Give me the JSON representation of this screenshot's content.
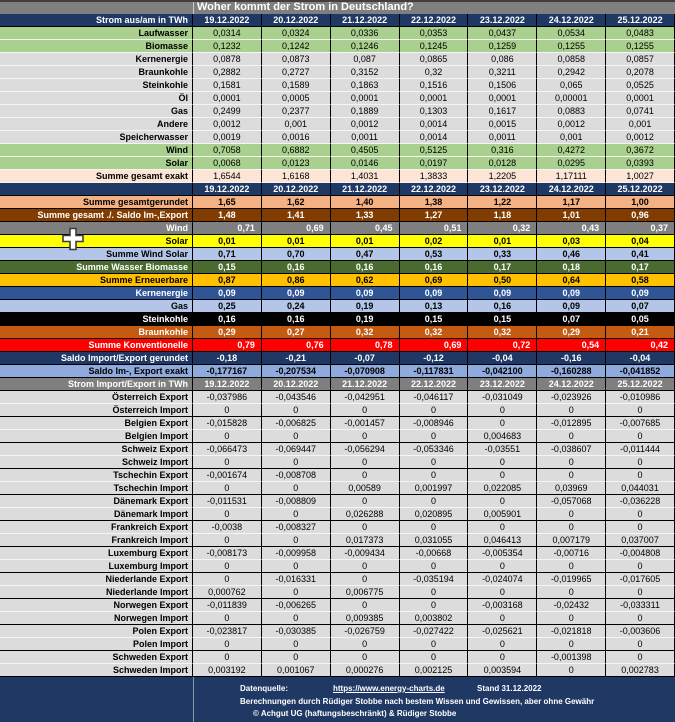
{
  "title": "Woher kommt der Strom in Deutschland?",
  "dates": [
    "19.12.2022",
    "20.12.2022",
    "21.12.2022",
    "22.12.2022",
    "23.12.2022",
    "24.12.2022",
    "25.12.2022"
  ],
  "colors": {
    "header_navy": "#1F3864",
    "title_gray": "#7F7F7F",
    "row_green": "#A9D08E",
    "row_gray": "#DCDCDC",
    "row_peach": "#FCE4D6"
  },
  "generation": {
    "header_label": "Strom aus/am in TWh",
    "rows": [
      {
        "label": "Laufwasser",
        "style": "green",
        "values": [
          "0,0314",
          "0,0324",
          "0,0336",
          "0,0353",
          "0,0437",
          "0,0534",
          "0,0483"
        ]
      },
      {
        "label": "Biomasse",
        "style": "green",
        "values": [
          "0,1232",
          "0,1242",
          "0,1246",
          "0,1245",
          "0,1259",
          "0,1255",
          "0,1255"
        ]
      },
      {
        "label": "Kernenergie",
        "style": "gray",
        "values": [
          "0,0878",
          "0,0873",
          "0,087",
          "0,0865",
          "0,086",
          "0,0858",
          "0,0857"
        ]
      },
      {
        "label": "Braunkohle",
        "style": "gray",
        "values": [
          "0,2882",
          "0,2727",
          "0,3152",
          "0,32",
          "0,3211",
          "0,2942",
          "0,2078"
        ]
      },
      {
        "label": "Steinkohle",
        "style": "gray",
        "values": [
          "0,1581",
          "0,1589",
          "0,1863",
          "0,1516",
          "0,1506",
          "0,065",
          "0,0525"
        ]
      },
      {
        "label": "Öl",
        "style": "gray",
        "values": [
          "0,0001",
          "0,0005",
          "0,0001",
          "0,0001",
          "0,0001",
          "0,00001",
          "0,0001"
        ]
      },
      {
        "label": "Gas",
        "style": "gray",
        "values": [
          "0,2499",
          "0,2377",
          "0,1889",
          "0,1303",
          "0,1617",
          "0,0883",
          "0,0741"
        ]
      },
      {
        "label": "Andere",
        "style": "gray",
        "values": [
          "0,0012",
          "0,001",
          "0,0012",
          "0,0014",
          "0,0015",
          "0,0012",
          "0,001"
        ]
      },
      {
        "label": "Speicherwasser",
        "style": "gray",
        "values": [
          "0,0019",
          "0,0016",
          "0,0011",
          "0,0014",
          "0,0011",
          "0,001",
          "0,0012"
        ]
      },
      {
        "label": "Wind",
        "style": "green",
        "values": [
          "0,7058",
          "0,6882",
          "0,4505",
          "0,5125",
          "0,316",
          "0,4272",
          "0,3672"
        ]
      },
      {
        "label": "Solar",
        "style": "green",
        "values": [
          "0,0068",
          "0,0123",
          "0,0146",
          "0,0197",
          "0,0128",
          "0,0295",
          "0,0393"
        ]
      },
      {
        "label": "Summe  gesamt exakt",
        "style": "peach",
        "values": [
          "1,6544",
          "1,6168",
          "1,4031",
          "1,3833",
          "1,2205",
          "1,17111",
          "1,0027"
        ]
      }
    ]
  },
  "summary": {
    "rows": [
      {
        "label": "Summe gesamtgerundet",
        "bg": "#F4B183",
        "fg": "#000000",
        "values": [
          "1,65",
          "1,62",
          "1,40",
          "1,38",
          "1,22",
          "1,17",
          "1,00"
        ]
      },
      {
        "label": "Summe gesamt ./. Saldo Im-,Export",
        "bg": "#833C00",
        "fg": "#FFFFFF",
        "values": [
          "1,48",
          "1,41",
          "1,33",
          "1,27",
          "1,18",
          "1,01",
          "0,96"
        ]
      },
      {
        "label": "Wind",
        "bg": "#7F7F7F",
        "fg": "#FFFFFF",
        "align": "right",
        "values": [
          "0,71",
          "0,69",
          "0,45",
          "0,51",
          "0,32",
          "0,43",
          "0,37"
        ]
      },
      {
        "label": "Solar",
        "bg": "#FFFF00",
        "fg": "#000000",
        "values": [
          "0,01",
          "0,01",
          "0,01",
          "0,02",
          "0,01",
          "0,03",
          "0,04"
        ]
      },
      {
        "label": "Summe Wind Solar",
        "bg": "#B4C6E7",
        "fg": "#000000",
        "values": [
          "0,71",
          "0,70",
          "0,47",
          "0,53",
          "0,33",
          "0,46",
          "0,41"
        ]
      },
      {
        "label": "Summe Wasser Biomasse",
        "bg": "#4A6A2F",
        "fg": "#FFFFFF",
        "values": [
          "0,15",
          "0,16",
          "0,16",
          "0,16",
          "0,17",
          "0,18",
          "0,17"
        ]
      },
      {
        "label": "Summe Erneuerbare",
        "bg": "#FFC000",
        "fg": "#000000",
        "values": [
          "0,87",
          "0,86",
          "0,62",
          "0,69",
          "0,50",
          "0,64",
          "0,58"
        ]
      },
      {
        "label": "Kernenergie",
        "bg": "#2F5597",
        "fg": "#FFFFFF",
        "values": [
          "0,09",
          "0,09",
          "0,09",
          "0,09",
          "0,09",
          "0,09",
          "0,09"
        ]
      },
      {
        "label": "Gas",
        "bg": "#B4C6E7",
        "fg": "#000000",
        "values": [
          "0,25",
          "0,24",
          "0,19",
          "0,13",
          "0,16",
          "0,09",
          "0,07"
        ]
      },
      {
        "label": "Steinkohle",
        "bg": "#000000",
        "fg": "#FFFFFF",
        "values": [
          "0,16",
          "0,16",
          "0,19",
          "0,15",
          "0,15",
          "0,07",
          "0,05"
        ]
      },
      {
        "label": "Braunkohle",
        "bg": "#C55A11",
        "fg": "#FFFFFF",
        "values": [
          "0,29",
          "0,27",
          "0,32",
          "0,32",
          "0,32",
          "0,29",
          "0,21"
        ]
      },
      {
        "label": "Summe Konventionelle",
        "bg": "#FF0000",
        "fg": "#FFFFFF",
        "align": "right",
        "values": [
          "0,79",
          "0,76",
          "0,78",
          "0,69",
          "0,72",
          "0,54",
          "0,42"
        ]
      },
      {
        "label": "Saldo Import/Export gerundet",
        "bg": "#1F3864",
        "fg": "#FFFFFF",
        "values": [
          "-0,18",
          "-0,21",
          "-0,07",
          "-0,12",
          "-0,04",
          "-0,16",
          "-0,04"
        ]
      },
      {
        "label": "Saldo Im-, Export exakt",
        "bg": "#8FAADC",
        "fg": "#000000",
        "values": [
          "-0,177167",
          "-0,207534",
          "-0,070908",
          "-0,117831",
          "-0,042100",
          "-0,160288",
          "-0,041852"
        ]
      }
    ]
  },
  "importexport": {
    "header_label": "Strom Import/Export in TWh",
    "rows": [
      {
        "label": "Österreich Export",
        "values": [
          "-0,037986",
          "-0,043546",
          "-0,042951",
          "-0,046117",
          "-0,031049",
          "-0,023926",
          "-0,010986"
        ]
      },
      {
        "label": "Österreich Import",
        "values": [
          "0",
          "0",
          "0",
          "0",
          "0",
          "0",
          "0"
        ]
      },
      {
        "label": "Belgien  Export",
        "values": [
          "-0,015828",
          "-0,006825",
          "-0,001457",
          "-0,008946",
          "0",
          "-0,012895",
          "-0,007685"
        ]
      },
      {
        "label": "Belgien Import",
        "values": [
          "0",
          "0",
          "0",
          "0",
          "0,004683",
          "0",
          "0"
        ]
      },
      {
        "label": "Schweiz Export",
        "values": [
          "-0,066473",
          "-0,069447",
          "-0,056294",
          "-0,053346",
          "-0,03551",
          "-0,038607",
          "-0,011444"
        ]
      },
      {
        "label": "Schweiz Import",
        "values": [
          "0",
          "0",
          "0",
          "0",
          "0",
          "0",
          "0"
        ]
      },
      {
        "label": "Tschechin Export",
        "values": [
          "-0,001674",
          "-0,008708",
          "0",
          "0",
          "0",
          "0",
          "0"
        ]
      },
      {
        "label": "Tschechin Import",
        "values": [
          "0",
          "0",
          "0,00589",
          "0,001997",
          "0,022085",
          "0,03969",
          "0,044031"
        ]
      },
      {
        "label": "Dänemark Export",
        "values": [
          "-0,011531",
          "-0,008809",
          "0",
          "0",
          "0",
          "-0,057068",
          "-0,036228"
        ]
      },
      {
        "label": "Dänemark Import",
        "values": [
          "0",
          "0",
          "0,026288",
          "0,020895",
          "0,005901",
          "0",
          "0"
        ]
      },
      {
        "label": "Frankreich Export",
        "values": [
          "-0,0038",
          "-0,008327",
          "0",
          "0",
          "0",
          "0",
          "0"
        ]
      },
      {
        "label": "Frankreich Import",
        "values": [
          "0",
          "0",
          "0,017373",
          "0,031055",
          "0,046413",
          "0,007179",
          "0,037007"
        ]
      },
      {
        "label": "Luxemburg Export",
        "values": [
          "-0,008173",
          "-0,009958",
          "-0,009434",
          "-0,00668",
          "-0,005354",
          "-0,00716",
          "-0,004808"
        ]
      },
      {
        "label": "Luxemburg Import",
        "values": [
          "0",
          "0",
          "0",
          "0",
          "0",
          "0",
          "0"
        ]
      },
      {
        "label": "Niederlande Export",
        "values": [
          "0",
          "-0,016331",
          "0",
          "-0,035194",
          "-0,024074",
          "-0,019965",
          "-0,017605"
        ]
      },
      {
        "label": "Niederlande Import",
        "values": [
          "0,000762",
          "0",
          "0,006775",
          "0",
          "0",
          "0",
          "0"
        ]
      },
      {
        "label": "Norwegen Export",
        "values": [
          "-0,011839",
          "-0,006265",
          "0",
          "0",
          "-0,003168",
          "-0,02432",
          "-0,033311"
        ]
      },
      {
        "label": "Norwegen Import",
        "values": [
          "0",
          "0",
          "0,009385",
          "0,003802",
          "0",
          "0",
          "0"
        ]
      },
      {
        "label": "Polen  Export",
        "values": [
          "-0,023817",
          "-0,030385",
          "-0,026759",
          "-0,027422",
          "-0,025621",
          "-0,021818",
          "-0,003606"
        ]
      },
      {
        "label": "Polen Import",
        "values": [
          "0",
          "0",
          "0",
          "0",
          "0",
          "0",
          "0"
        ]
      },
      {
        "label": "Schweden Export",
        "values": [
          "0",
          "0",
          "0",
          "0",
          "0",
          "-0,001398",
          "0"
        ]
      },
      {
        "label": "Schweden Import",
        "values": [
          "0,003192",
          "0,001067",
          "0,000276",
          "0,002125",
          "0,003594",
          "0",
          "0,002783"
        ]
      }
    ]
  },
  "footer": {
    "source_label": "Datenquelle:",
    "source_url": "https://www.energy-charts.de",
    "stand": "Stand 31.12.2022",
    "line2": "Berechnungen durch Rüdiger Stobbe nach bestem Wissen und Gewissen, aber ohne Gewähr",
    "copyright": "© Achgut UG (haftungsbeschränkt) & Rüdiger Stobbe"
  }
}
